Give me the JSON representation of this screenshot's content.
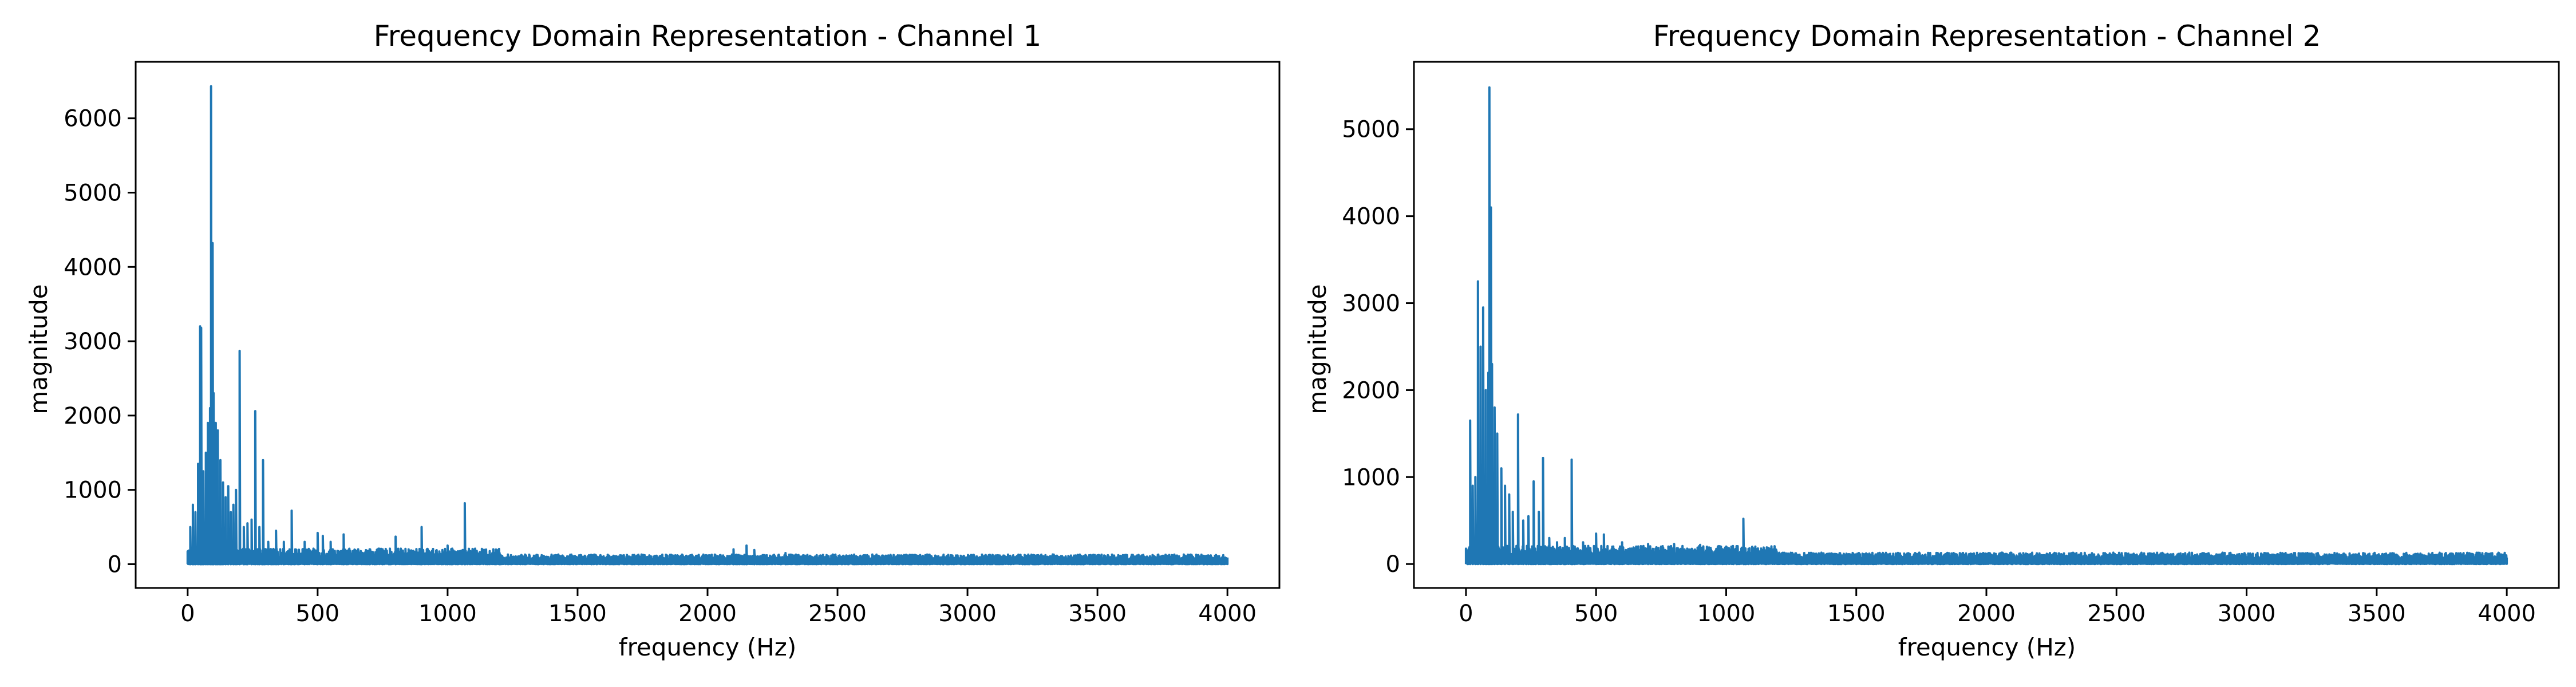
{
  "colors": {
    "background": "#ffffff",
    "series": "#1f77b4",
    "axes": "#000000"
  },
  "chart_data": [
    {
      "type": "line",
      "title": "Frequency Domain Representation - Channel 1",
      "xlabel": "frequency (Hz)",
      "ylabel": "magnitude",
      "xlim": [
        -200,
        4200
      ],
      "ylim": [
        -320,
        6760
      ],
      "xticks": [
        0,
        500,
        1000,
        1500,
        2000,
        2500,
        3000,
        3500,
        4000
      ],
      "xtick_labels": [
        "0",
        "500",
        "1000",
        "1500",
        "2000",
        "2500",
        "3000",
        "3500",
        "4000"
      ],
      "yticks": [
        0,
        1000,
        2000,
        3000,
        4000,
        5000,
        6000
      ],
      "ytick_labels": [
        "0",
        "1000",
        "2000",
        "3000",
        "4000",
        "5000",
        "6000"
      ],
      "grid": false,
      "legend": "none",
      "x_range": [
        0,
        4000
      ],
      "noise_floor": 90,
      "peaks": [
        {
          "x": 10,
          "y": 500
        },
        {
          "x": 20,
          "y": 800
        },
        {
          "x": 30,
          "y": 700
        },
        {
          "x": 40,
          "y": 1350
        },
        {
          "x": 47,
          "y": 3200
        },
        {
          "x": 52,
          "y": 3180
        },
        {
          "x": 60,
          "y": 1250
        },
        {
          "x": 70,
          "y": 1500
        },
        {
          "x": 78,
          "y": 1900
        },
        {
          "x": 85,
          "y": 2100
        },
        {
          "x": 90,
          "y": 6430
        },
        {
          "x": 96,
          "y": 4320
        },
        {
          "x": 100,
          "y": 2300
        },
        {
          "x": 108,
          "y": 1900
        },
        {
          "x": 115,
          "y": 1800
        },
        {
          "x": 125,
          "y": 1400
        },
        {
          "x": 135,
          "y": 1100
        },
        {
          "x": 145,
          "y": 900
        },
        {
          "x": 155,
          "y": 1050
        },
        {
          "x": 165,
          "y": 700
        },
        {
          "x": 175,
          "y": 800
        },
        {
          "x": 185,
          "y": 1000
        },
        {
          "x": 200,
          "y": 2870
        },
        {
          "x": 215,
          "y": 500
        },
        {
          "x": 230,
          "y": 550
        },
        {
          "x": 245,
          "y": 600
        },
        {
          "x": 260,
          "y": 2060
        },
        {
          "x": 275,
          "y": 500
        },
        {
          "x": 290,
          "y": 1400
        },
        {
          "x": 310,
          "y": 300
        },
        {
          "x": 340,
          "y": 450
        },
        {
          "x": 370,
          "y": 300
        },
        {
          "x": 400,
          "y": 720
        },
        {
          "x": 450,
          "y": 300
        },
        {
          "x": 500,
          "y": 420
        },
        {
          "x": 520,
          "y": 380
        },
        {
          "x": 550,
          "y": 300
        },
        {
          "x": 600,
          "y": 400
        },
        {
          "x": 700,
          "y": 200
        },
        {
          "x": 750,
          "y": 200
        },
        {
          "x": 800,
          "y": 370
        },
        {
          "x": 900,
          "y": 500
        },
        {
          "x": 1000,
          "y": 250
        },
        {
          "x": 1066,
          "y": 820
        },
        {
          "x": 1200,
          "y": 150
        },
        {
          "x": 2100,
          "y": 200
        },
        {
          "x": 2150,
          "y": 250
        },
        {
          "x": 2180,
          "y": 190
        },
        {
          "x": 2300,
          "y": 150
        }
      ]
    },
    {
      "type": "line",
      "title": "Frequency Domain Representation - Channel 2",
      "xlabel": "frequency (Hz)",
      "ylabel": "magnitude",
      "xlim": [
        -200,
        4200
      ],
      "ylim": [
        -275,
        5775
      ],
      "xticks": [
        0,
        500,
        1000,
        1500,
        2000,
        2500,
        3000,
        3500,
        4000
      ],
      "xtick_labels": [
        "0",
        "500",
        "1000",
        "1500",
        "2000",
        "2500",
        "3000",
        "3500",
        "4000"
      ],
      "yticks": [
        0,
        1000,
        2000,
        3000,
        4000,
        5000
      ],
      "ytick_labels": [
        "0",
        "1000",
        "2000",
        "3000",
        "4000",
        "5000"
      ],
      "grid": false,
      "legend": "none",
      "x_range": [
        0,
        4000
      ],
      "noise_floor": 90,
      "peaks": [
        {
          "x": 15,
          "y": 1650
        },
        {
          "x": 25,
          "y": 900
        },
        {
          "x": 35,
          "y": 1000
        },
        {
          "x": 45,
          "y": 3250
        },
        {
          "x": 55,
          "y": 2500
        },
        {
          "x": 65,
          "y": 2950
        },
        {
          "x": 75,
          "y": 2000
        },
        {
          "x": 85,
          "y": 2200
        },
        {
          "x": 90,
          "y": 5480
        },
        {
          "x": 95,
          "y": 4100
        },
        {
          "x": 100,
          "y": 2300
        },
        {
          "x": 110,
          "y": 1800
        },
        {
          "x": 120,
          "y": 1500
        },
        {
          "x": 135,
          "y": 1100
        },
        {
          "x": 150,
          "y": 900
        },
        {
          "x": 165,
          "y": 800
        },
        {
          "x": 180,
          "y": 600
        },
        {
          "x": 200,
          "y": 1720
        },
        {
          "x": 220,
          "y": 500
        },
        {
          "x": 240,
          "y": 550
        },
        {
          "x": 260,
          "y": 950
        },
        {
          "x": 280,
          "y": 600
        },
        {
          "x": 295,
          "y": 1220
        },
        {
          "x": 320,
          "y": 300
        },
        {
          "x": 350,
          "y": 250
        },
        {
          "x": 380,
          "y": 300
        },
        {
          "x": 405,
          "y": 1200
        },
        {
          "x": 450,
          "y": 250
        },
        {
          "x": 500,
          "y": 350
        },
        {
          "x": 530,
          "y": 340
        },
        {
          "x": 600,
          "y": 250
        },
        {
          "x": 700,
          "y": 230
        },
        {
          "x": 750,
          "y": 200
        },
        {
          "x": 800,
          "y": 230
        },
        {
          "x": 900,
          "y": 220
        },
        {
          "x": 1000,
          "y": 200
        },
        {
          "x": 1066,
          "y": 520
        },
        {
          "x": 1150,
          "y": 150
        }
      ]
    }
  ]
}
